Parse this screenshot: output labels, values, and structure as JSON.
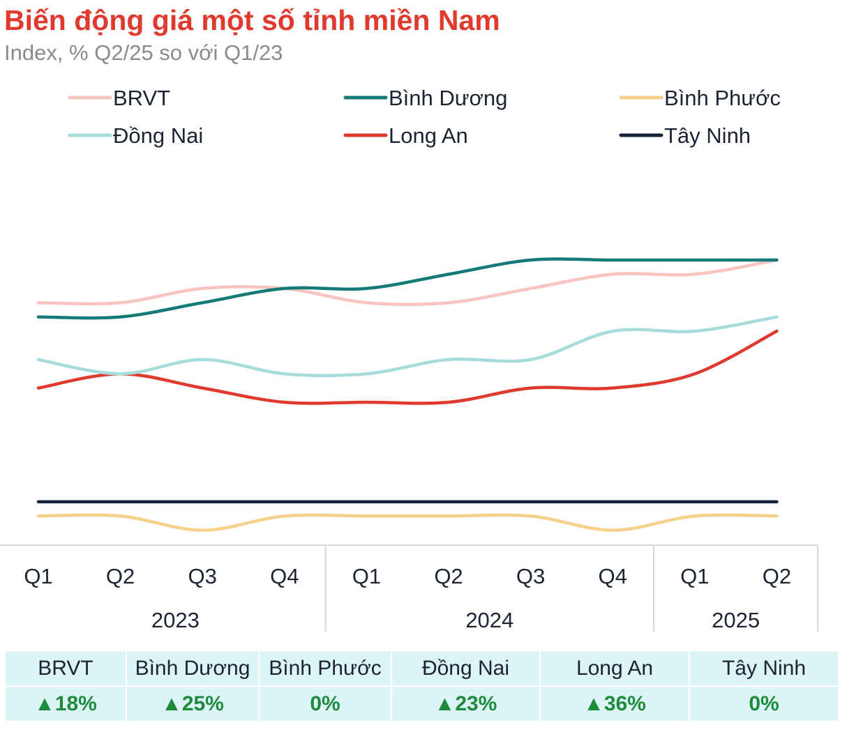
{
  "title": "Biến động giá một số tỉnh miền Nam",
  "subtitle": "Index, % Q2/25 so với Q1/23",
  "chart_data": {
    "type": "line",
    "title": "Biến động giá một số tỉnh miền Nam",
    "subtitle": "Index, % Q2/25 so với Q1/23",
    "quarters": [
      "Q1",
      "Q2",
      "Q3",
      "Q4",
      "Q1",
      "Q2",
      "Q3",
      "Q4",
      "Q1",
      "Q2"
    ],
    "years": [
      {
        "label": "2023",
        "span": 4
      },
      {
        "label": "2024",
        "span": 4
      },
      {
        "label": "2025",
        "span": 2
      }
    ],
    "ylim": [
      -3,
      24.5
    ],
    "grid": false,
    "legend_placement": "top",
    "series": [
      {
        "name": "BRVT",
        "color": "#f9c4bf",
        "values": [
          14,
          14,
          15,
          15,
          14,
          14,
          15,
          16,
          16,
          17
        ]
      },
      {
        "name": "Bình Dương",
        "color": "#137a78",
        "values": [
          13,
          13,
          14,
          15,
          15,
          16,
          17,
          17,
          17,
          17
        ]
      },
      {
        "name": "Bình Phước",
        "color": "#f7d08a",
        "values": [
          -1,
          -1,
          -2,
          -1,
          -1,
          -1,
          -1,
          -2,
          -1,
          -1
        ]
      },
      {
        "name": "Đồng Nai",
        "color": "#a6dcdc",
        "values": [
          10,
          9,
          10,
          9,
          9,
          10,
          10,
          12,
          12,
          13
        ]
      },
      {
        "name": "Long An",
        "color": "#e03a2f",
        "values": [
          8,
          9,
          8,
          7,
          7,
          7,
          8,
          8,
          9,
          12
        ]
      },
      {
        "name": "Tây Ninh",
        "color": "#14233a",
        "values": [
          0,
          0,
          0,
          0,
          0,
          0,
          0,
          0,
          0,
          0
        ]
      }
    ]
  },
  "summary": {
    "headers": [
      "BRVT",
      "Bình Dương",
      "Bình Phước",
      "Đồng Nai",
      "Long An",
      "Tây Ninh"
    ],
    "values": [
      "▲18%",
      "▲25%",
      "0%",
      "▲23%",
      "▲36%",
      "0%"
    ]
  }
}
